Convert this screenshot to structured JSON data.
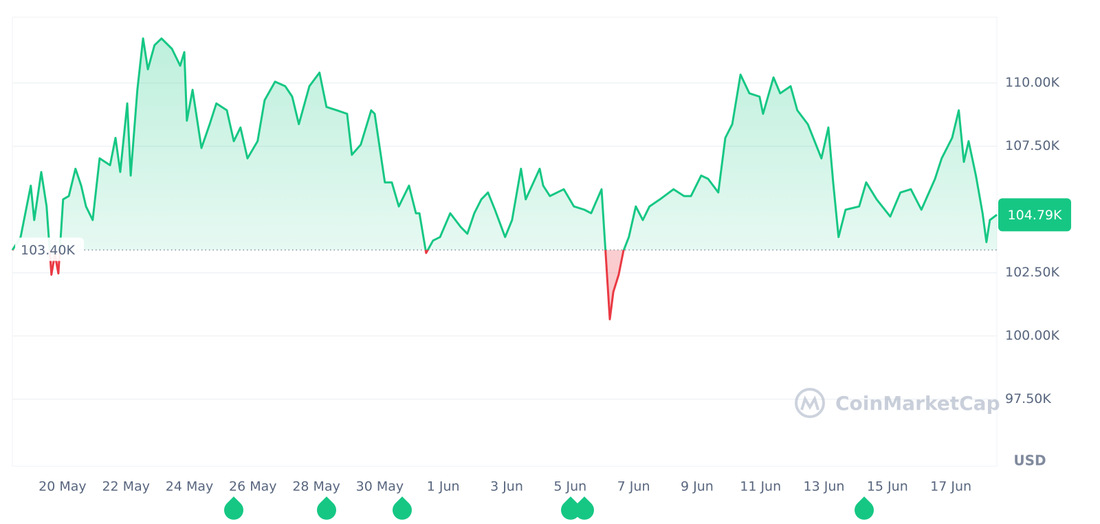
{
  "chart_data": {
    "type": "line",
    "x": [
      18.42,
      18.68,
      19.0,
      19.11,
      19.33,
      19.5,
      19.65,
      19.76,
      19.87,
      20.02,
      20.2,
      20.41,
      20.59,
      20.74,
      20.95,
      21.17,
      21.5,
      21.67,
      21.82,
      22.04,
      22.15,
      22.36,
      22.54,
      22.69,
      22.9,
      23.12,
      23.45,
      23.71,
      23.84,
      23.92,
      24.1,
      24.38,
      24.64,
      24.85,
      25.18,
      25.4,
      25.61,
      25.83,
      26.15,
      26.37,
      26.7,
      27.02,
      27.24,
      27.45,
      27.78,
      28.1,
      28.32,
      28.65,
      28.97,
      29.12,
      29.4,
      29.73,
      29.84,
      30.16,
      30.38,
      30.6,
      30.92,
      31.14,
      31.25,
      31.46,
      31.68,
      31.9,
      32.22,
      32.55,
      32.76,
      32.98,
      33.2,
      33.41,
      33.63,
      33.95,
      34.17,
      34.45,
      34.6,
      35.04,
      35.15,
      35.36,
      35.8,
      36.12,
      36.45,
      36.66,
      36.99,
      37.1,
      37.25,
      37.36,
      37.53,
      37.68,
      37.85,
      38.07,
      38.29,
      38.5,
      38.83,
      39.26,
      39.59,
      39.81,
      40.13,
      40.35,
      40.67,
      40.89,
      41.11,
      41.37,
      41.65,
      41.97,
      42.08,
      42.41,
      42.62,
      42.95,
      43.16,
      43.49,
      43.92,
      44.14,
      44.29,
      44.46,
      44.68,
      45.11,
      45.33,
      45.66,
      46.09,
      46.41,
      46.74,
      47.07,
      47.5,
      47.71,
      48.04,
      48.25,
      48.41,
      48.56,
      48.79,
      49.0,
      49.12,
      49.23,
      49.45
    ],
    "values": [
      103.39,
      103.91,
      105.94,
      104.58,
      106.48,
      105.12,
      102.42,
      103.23,
      102.47,
      105.4,
      105.53,
      106.61,
      105.94,
      105.12,
      104.58,
      107.02,
      106.75,
      107.83,
      106.48,
      109.19,
      106.34,
      109.73,
      111.76,
      110.54,
      111.49,
      111.76,
      111.35,
      110.68,
      111.22,
      108.51,
      109.73,
      107.43,
      108.37,
      109.19,
      108.92,
      107.7,
      108.24,
      107.02,
      107.7,
      109.32,
      110.05,
      109.87,
      109.46,
      108.37,
      109.87,
      110.41,
      109.05,
      108.92,
      108.78,
      107.16,
      107.56,
      108.92,
      108.78,
      106.07,
      106.07,
      105.12,
      105.94,
      104.85,
      104.85,
      103.28,
      103.77,
      103.91,
      104.85,
      104.31,
      104.04,
      104.85,
      105.4,
      105.67,
      104.99,
      103.91,
      104.58,
      106.61,
      105.4,
      106.61,
      105.94,
      105.53,
      105.8,
      105.12,
      104.99,
      104.85,
      105.8,
      103.63,
      100.66,
      101.74,
      102.42,
      103.36,
      103.91,
      105.12,
      104.58,
      105.12,
      105.4,
      105.8,
      105.53,
      105.53,
      106.34,
      106.21,
      105.67,
      107.83,
      108.37,
      110.33,
      109.59,
      109.46,
      108.78,
      110.22,
      109.59,
      109.87,
      108.92,
      108.37,
      107.02,
      108.24,
      106.07,
      103.91,
      104.99,
      105.12,
      106.07,
      105.4,
      104.72,
      105.67,
      105.8,
      104.99,
      106.21,
      107.02,
      107.83,
      108.92,
      106.88,
      107.7,
      106.34,
      104.85,
      103.71,
      104.58,
      104.79
    ],
    "color": "#16c784",
    "negative_color": "#ea3943",
    "xlim": [
      18.42,
      49.45
    ],
    "xticks": [
      {
        "value": 20,
        "label": "20 May"
      },
      {
        "value": 22,
        "label": "22 May"
      },
      {
        "value": 24,
        "label": "24 May"
      },
      {
        "value": 26,
        "label": "26 May"
      },
      {
        "value": 28,
        "label": "28 May"
      },
      {
        "value": 30,
        "label": "30 May"
      },
      {
        "value": 32,
        "label": "1 Jun"
      },
      {
        "value": 34,
        "label": "3 Jun"
      },
      {
        "value": 36,
        "label": "5 Jun"
      },
      {
        "value": 38,
        "label": "7 Jun"
      },
      {
        "value": 40,
        "label": "9 Jun"
      },
      {
        "value": 42,
        "label": "11 Jun"
      },
      {
        "value": 44,
        "label": "13 Jun"
      },
      {
        "value": 46,
        "label": "15 Jun"
      },
      {
        "value": 48,
        "label": "17 Jun"
      }
    ],
    "ylim": [
      94.85,
      112.6
    ],
    "yticks": [
      {
        "value": 97.5,
        "label": "97.50K"
      },
      {
        "value": 100,
        "label": "100.00K"
      },
      {
        "value": 102.5,
        "label": "102.50K"
      },
      {
        "value": 107.5,
        "label": "107.50K"
      },
      {
        "value": 110,
        "label": "110.00K"
      }
    ],
    "grid": true,
    "reference_line": {
      "value": 103.4,
      "label": "103.40K"
    },
    "last_price": {
      "value": 104.79,
      "label": "104.79K"
    },
    "currency": "USD",
    "watermark": "CoinMarketCap"
  }
}
